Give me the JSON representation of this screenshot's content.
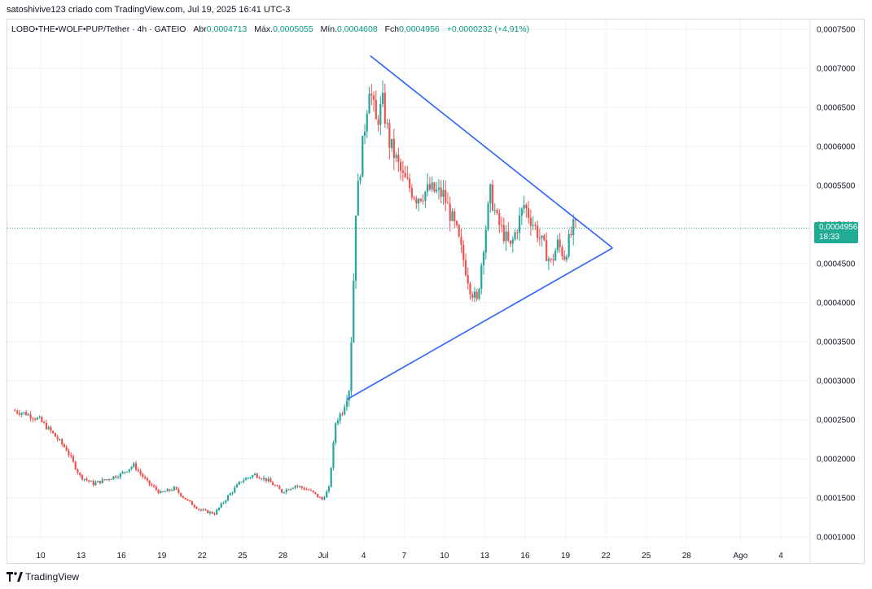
{
  "header": {
    "credit": "satoshivive123 criado com TradingView.com, Jul 19, 2025 16:41 UTC-3"
  },
  "legend": {
    "symbol": "LOBO•THE•WOLF•PUP/Tether · 4h · GATEIO",
    "open_label": "Abr",
    "open_value": "0,0004713",
    "high_label": "Máx.",
    "high_value": "0,0005055",
    "low_label": "Mín.",
    "low_value": "0,0004608",
    "close_label": "Fch",
    "close_value": "0,0004956",
    "change": "+0,0000232 (+4,91%)"
  },
  "price_badge": {
    "price": "0,0004956",
    "countdown": "18:33"
  },
  "footer": {
    "brand": "TradingView"
  },
  "colors": {
    "up": "#26a69a",
    "down": "#ef5350",
    "trendline": "#2962ff",
    "badge": "#22ab94"
  },
  "chart_data": {
    "type": "candlestick",
    "y_axis_side": "right",
    "ylim": [
      9.2e-05,
      0.000767
    ],
    "y_ticks": [
      {
        "value": 0.00075,
        "label": "0,0007500"
      },
      {
        "value": 0.0007,
        "label": "0,0007000"
      },
      {
        "value": 0.00065,
        "label": "0,0006500"
      },
      {
        "value": 0.0006,
        "label": "0,0006000"
      },
      {
        "value": 0.00055,
        "label": "0,0005500"
      },
      {
        "value": 0.0005,
        "label": "0,0005000"
      },
      {
        "value": 0.00045,
        "label": "0,0004500"
      },
      {
        "value": 0.0004,
        "label": "0,0004000"
      },
      {
        "value": 0.00035,
        "label": "0,0003500"
      },
      {
        "value": 0.0003,
        "label": "0,0003000"
      },
      {
        "value": 0.00025,
        "label": "0,0002500"
      },
      {
        "value": 0.0002,
        "label": "0,0002000"
      },
      {
        "value": 0.00015,
        "label": "0,0001500"
      },
      {
        "value": 0.0001,
        "label": "0,0001000"
      }
    ],
    "x_ticks": [
      {
        "date": "2025-06-10",
        "label": "10"
      },
      {
        "date": "2025-06-13",
        "label": "13"
      },
      {
        "date": "2025-06-16",
        "label": "16"
      },
      {
        "date": "2025-06-19",
        "label": "19"
      },
      {
        "date": "2025-06-22",
        "label": "22"
      },
      {
        "date": "2025-06-25",
        "label": "25"
      },
      {
        "date": "2025-06-28",
        "label": "28"
      },
      {
        "date": "2025-07-01",
        "label": "Jul"
      },
      {
        "date": "2025-07-04",
        "label": "4"
      },
      {
        "date": "2025-07-07",
        "label": "7"
      },
      {
        "date": "2025-07-10",
        "label": "10"
      },
      {
        "date": "2025-07-13",
        "label": "13"
      },
      {
        "date": "2025-07-16",
        "label": "16"
      },
      {
        "date": "2025-07-19",
        "label": "19"
      },
      {
        "date": "2025-07-22",
        "label": "22"
      },
      {
        "date": "2025-07-25",
        "label": "25"
      },
      {
        "date": "2025-07-28",
        "label": "28"
      },
      {
        "date": "2025-08-01",
        "label": "Ago"
      },
      {
        "date": "2025-08-04",
        "label": "4"
      }
    ],
    "current_price": 0.0004956,
    "price_path": [
      [
        "2025-06-08",
        0.000262
      ],
      [
        "2025-06-09",
        0.000258
      ],
      [
        "2025-06-10",
        0.00025
      ],
      [
        "2025-06-11",
        0.000232
      ],
      [
        "2025-06-12",
        0.000212
      ],
      [
        "2025-06-13",
        0.000178
      ],
      [
        "2025-06-14",
        0.000168
      ],
      [
        "2025-06-15",
        0.000174
      ],
      [
        "2025-06-16",
        0.00018
      ],
      [
        "2025-06-17",
        0.000192
      ],
      [
        "2025-06-18",
        0.00017
      ],
      [
        "2025-06-19",
        0.000156
      ],
      [
        "2025-06-20",
        0.000162
      ],
      [
        "2025-06-21",
        0.000146
      ],
      [
        "2025-06-22",
        0.000134
      ],
      [
        "2025-06-23",
        0.00013
      ],
      [
        "2025-06-24",
        0.000152
      ],
      [
        "2025-06-25",
        0.000172
      ],
      [
        "2025-06-26",
        0.00018
      ],
      [
        "2025-06-27",
        0.000172
      ],
      [
        "2025-06-28",
        0.000158
      ],
      [
        "2025-06-29",
        0.000166
      ],
      [
        "2025-06-30",
        0.00016
      ],
      [
        "2025-07-01",
        0.000148
      ],
      [
        "2025-07-01 12:00",
        0.000162
      ],
      [
        "2025-07-02",
        0.000246
      ],
      [
        "2025-07-02 12:00",
        0.000262
      ],
      [
        "2025-07-03",
        0.00029
      ],
      [
        "2025-07-03 06:00",
        0.000385
      ],
      [
        "2025-07-03 12:00",
        0.00052
      ],
      [
        "2025-07-04",
        0.0006
      ],
      [
        "2025-07-04 12:00",
        0.00068
      ],
      [
        "2025-07-05",
        0.00063
      ],
      [
        "2025-07-05 12:00",
        0.000655
      ],
      [
        "2025-07-06",
        0.000605
      ],
      [
        "2025-07-07",
        0.00056
      ],
      [
        "2025-07-08",
        0.000535
      ],
      [
        "2025-07-09",
        0.000545
      ],
      [
        "2025-07-10",
        0.000538
      ],
      [
        "2025-07-11",
        0.00049
      ],
      [
        "2025-07-12",
        0.00042
      ],
      [
        "2025-07-12 12:00",
        0.0004
      ],
      [
        "2025-07-13",
        0.000475
      ],
      [
        "2025-07-13 12:00",
        0.00054
      ],
      [
        "2025-07-14",
        0.000505
      ],
      [
        "2025-07-15",
        0.00047
      ],
      [
        "2025-07-16",
        0.000525
      ],
      [
        "2025-07-17",
        0.00049
      ],
      [
        "2025-07-18",
        0.00045
      ],
      [
        "2025-07-18 12:00",
        0.000475
      ],
      [
        "2025-07-19",
        0.00046
      ],
      [
        "2025-07-19 16:00",
        0.000496
      ]
    ],
    "trendlines": [
      {
        "name": "upper",
        "from": [
          "2025-07-04 12:00",
          0.000716
        ],
        "to": [
          "2025-07-22 12:00",
          0.00047
        ]
      },
      {
        "name": "lower",
        "from": [
          "2025-07-02 18:00",
          0.000276
        ],
        "to": [
          "2025-07-22 12:00",
          0.00047
        ]
      }
    ]
  }
}
